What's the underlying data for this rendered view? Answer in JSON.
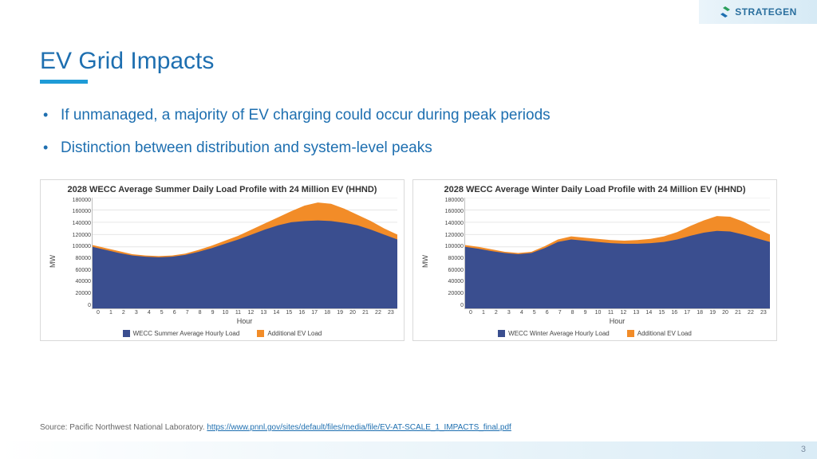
{
  "brand": {
    "name": "STRATEGEN",
    "mark_colors": [
      "#2a9e5b",
      "#1e6fb0"
    ]
  },
  "title": "EV Grid Impacts",
  "title_color": "#1e6fb0",
  "underline_color": "#1e9bd7",
  "bullets": [
    "If unmanaged, a majority of EV charging could occur during peak periods",
    "Distinction between distribution and system-level peaks"
  ],
  "charts": {
    "ylim": [
      0,
      180000
    ],
    "ytick_step": 20000,
    "yticks": [
      "180000",
      "160000",
      "140000",
      "120000",
      "100000",
      "80000",
      "60000",
      "40000",
      "20000",
      "0"
    ],
    "xticks": [
      "0",
      "1",
      "2",
      "3",
      "4",
      "5",
      "6",
      "7",
      "8",
      "9",
      "10",
      "11",
      "12",
      "13",
      "14",
      "15",
      "16",
      "17",
      "18",
      "19",
      "20",
      "21",
      "22",
      "23"
    ],
    "xlabel": "Hour",
    "ylabel": "MW",
    "grid_color": "#e6e6e6",
    "background_color": "#ffffff",
    "title_fontsize": 11,
    "label_fontsize": 9,
    "series_colors": {
      "base": "#3a4e8f",
      "ev": "#f28c28"
    },
    "summer": {
      "title": "2028 WECC Average Summer Daily Load Profile with 24 Million EV (HHND)",
      "legend": [
        "WECC Summer Average Hourly Load",
        "Additional EV Load"
      ],
      "base": [
        100000,
        95000,
        90000,
        86000,
        84000,
        83000,
        84000,
        87000,
        92000,
        98000,
        105000,
        112000,
        120000,
        128000,
        135000,
        140000,
        142000,
        143000,
        142000,
        139000,
        135000,
        128000,
        120000,
        112000
      ],
      "total": [
        103000,
        98000,
        93000,
        88000,
        86000,
        85000,
        86000,
        89000,
        95000,
        102000,
        110000,
        118000,
        128000,
        138000,
        148000,
        158000,
        167000,
        172000,
        170000,
        162000,
        152000,
        142000,
        130000,
        120000
      ]
    },
    "winter": {
      "title": "2028 WECC Average Winter Daily Load Profile with 24 Million EV (HHND)",
      "legend": [
        "WECC Winter Average Hourly Load",
        "Additional EV Load"
      ],
      "base": [
        100000,
        97000,
        93000,
        90000,
        88000,
        90000,
        98000,
        108000,
        112000,
        110000,
        108000,
        106000,
        105000,
        105000,
        106000,
        108000,
        112000,
        118000,
        123000,
        126000,
        125000,
        120000,
        114000,
        108000
      ],
      "total": [
        103000,
        100000,
        96000,
        92000,
        90000,
        92000,
        101000,
        112000,
        117000,
        115000,
        113000,
        111000,
        110000,
        111000,
        113000,
        117000,
        124000,
        134000,
        143000,
        150000,
        149000,
        141000,
        130000,
        120000
      ]
    }
  },
  "source": {
    "prefix": "Source: Pacific Northwest National Laboratory. ",
    "link_text": "https://www.pnnl.gov/sites/default/files/media/file/EV-AT-SCALE_1_IMPACTS_final.pdf"
  },
  "page_number": "3"
}
